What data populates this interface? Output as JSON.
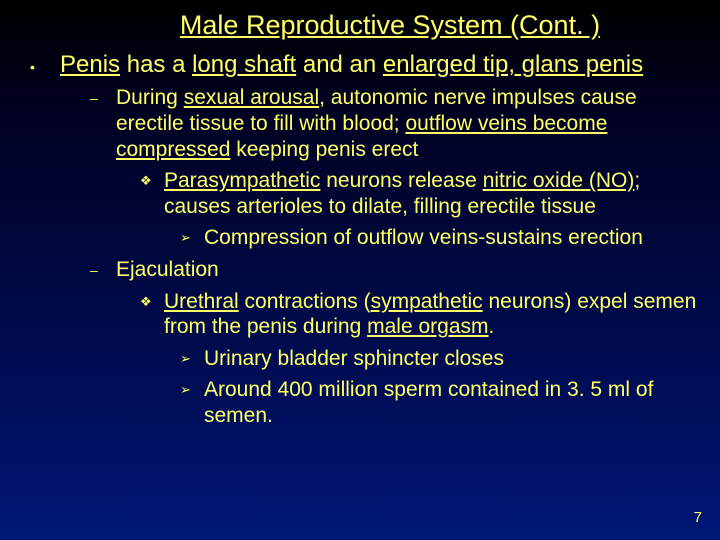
{
  "colors": {
    "bg_gradient_top": "#000000",
    "bg_gradient_bottom": "#001878",
    "text_primary": "#ffff66",
    "bullet_dot": "#ffff66"
  },
  "typography": {
    "title_fontsize": 27,
    "body_fontsize_lvl1": 24,
    "body_fontsize_lvl2": 21,
    "font_family": "Arial"
  },
  "title": "Male Reproductive System (Cont. )",
  "page_number": "7",
  "bullets": {
    "b1": {
      "marker": "•",
      "text_a": "Penis",
      "text_b": " has a ",
      "text_c": "long shaft",
      "text_d": " and an ",
      "text_e": "enlarged tip, glans penis"
    },
    "b2": {
      "marker": "–",
      "text_a": "During ",
      "text_b": "sexual arousal",
      "text_c": ", autonomic nerve impulses cause erectile tissue to fill with blood; ",
      "text_d": "outflow veins become compressed",
      "text_e": " keeping penis erect"
    },
    "b3": {
      "marker": "❖",
      "text_a": "Parasympathetic",
      "text_b": " neurons release ",
      "text_c": "nitric oxide (NO)",
      "text_d": "; causes arterioles to dilate, filling erectile tissue"
    },
    "b4": {
      "marker": "➢",
      "text_a": "Compression of outflow veins-sustains erection"
    },
    "b5": {
      "marker": "–",
      "text_a": "Ejaculation"
    },
    "b6": {
      "marker": "❖",
      "text_a": "Urethral",
      "text_b": " contractions (",
      "text_c": "sympathetic",
      "text_d": " neurons) expel semen from the penis during ",
      "text_e": "male orgasm",
      "text_f": "."
    },
    "b7": {
      "marker": "➢",
      "text_a": "Urinary bladder sphincter closes"
    },
    "b8": {
      "marker": "➢",
      "text_a": "Around 400 million sperm contained in 3. 5 ml of semen."
    }
  }
}
